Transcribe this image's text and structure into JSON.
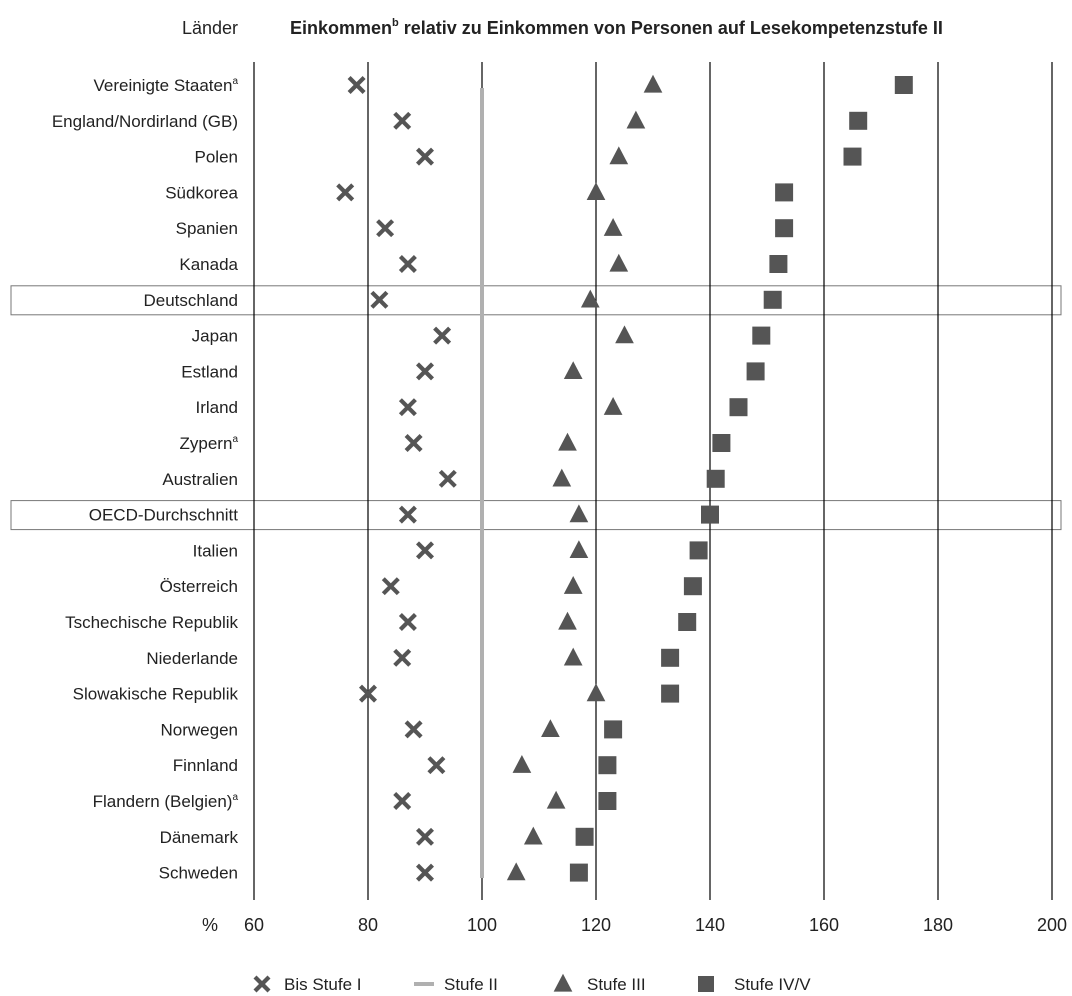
{
  "header": {
    "country_col_label": "Länder",
    "title": "Einkommen",
    "title_sup": "b",
    "title_rest": " relativ zu Einkommen von Personen auf Lesekompetenzstufe II"
  },
  "colors": {
    "marker": "#555555",
    "reference_line": "#b0b0b0",
    "grid": "#000000",
    "highlight_border": "#777777"
  },
  "chart_data": {
    "type": "scatter",
    "x_unit_label": "%",
    "xlim": [
      60,
      200
    ],
    "xticks": [
      "60",
      "80",
      "100",
      "120",
      "140",
      "160",
      "180",
      "200"
    ],
    "grid": true,
    "reference_value": 100,
    "legend_position": "bottom",
    "series": [
      {
        "name": "Bis Stufe I",
        "marker": "x-icon"
      },
      {
        "name": "Stufe II",
        "marker": "line-icon"
      },
      {
        "name": "Stufe III",
        "marker": "triangle-icon"
      },
      {
        "name": "Stufe IV/V",
        "marker": "square-icon"
      }
    ],
    "rows": [
      {
        "country": "Vereinigte Staaten",
        "sup": "a",
        "highlight": false,
        "stufe1": 78,
        "stufe3": 130,
        "stufe45": 174
      },
      {
        "country": "England/Nordirland (GB)",
        "sup": "",
        "highlight": false,
        "stufe1": 86,
        "stufe3": 127,
        "stufe45": 166
      },
      {
        "country": "Polen",
        "sup": "",
        "highlight": false,
        "stufe1": 90,
        "stufe3": 124,
        "stufe45": 165
      },
      {
        "country": "Südkorea",
        "sup": "",
        "highlight": false,
        "stufe1": 76,
        "stufe3": 120,
        "stufe45": 153
      },
      {
        "country": "Spanien",
        "sup": "",
        "highlight": false,
        "stufe1": 83,
        "stufe3": 123,
        "stufe45": 153
      },
      {
        "country": "Kanada",
        "sup": "",
        "highlight": false,
        "stufe1": 87,
        "stufe3": 124,
        "stufe45": 152
      },
      {
        "country": "Deutschland",
        "sup": "",
        "highlight": true,
        "stufe1": 82,
        "stufe3": 119,
        "stufe45": 151
      },
      {
        "country": "Japan",
        "sup": "",
        "highlight": false,
        "stufe1": 93,
        "stufe3": 125,
        "stufe45": 149
      },
      {
        "country": "Estland",
        "sup": "",
        "highlight": false,
        "stufe1": 90,
        "stufe3": 116,
        "stufe45": 148
      },
      {
        "country": "Irland",
        "sup": "",
        "highlight": false,
        "stufe1": 87,
        "stufe3": 123,
        "stufe45": 145
      },
      {
        "country": "Zypern",
        "sup": "a",
        "highlight": false,
        "stufe1": 88,
        "stufe3": 115,
        "stufe45": 142
      },
      {
        "country": "Australien",
        "sup": "",
        "highlight": false,
        "stufe1": 94,
        "stufe3": 114,
        "stufe45": 141
      },
      {
        "country": "OECD-Durchschnitt",
        "sup": "",
        "highlight": true,
        "stufe1": 87,
        "stufe3": 117,
        "stufe45": 140
      },
      {
        "country": "Italien",
        "sup": "",
        "highlight": false,
        "stufe1": 90,
        "stufe3": 117,
        "stufe45": 138
      },
      {
        "country": "Österreich",
        "sup": "",
        "highlight": false,
        "stufe1": 84,
        "stufe3": 116,
        "stufe45": 137
      },
      {
        "country": "Tschechische Republik",
        "sup": "",
        "highlight": false,
        "stufe1": 87,
        "stufe3": 115,
        "stufe45": 136
      },
      {
        "country": "Niederlande",
        "sup": "",
        "highlight": false,
        "stufe1": 86,
        "stufe3": 116,
        "stufe45": 133
      },
      {
        "country": "Slowakische Republik",
        "sup": "",
        "highlight": false,
        "stufe1": 80,
        "stufe3": 120,
        "stufe45": 133
      },
      {
        "country": "Norwegen",
        "sup": "",
        "highlight": false,
        "stufe1": 88,
        "stufe3": 112,
        "stufe45": 123
      },
      {
        "country": "Finnland",
        "sup": "",
        "highlight": false,
        "stufe1": 92,
        "stufe3": 107,
        "stufe45": 122
      },
      {
        "country": "Flandern (Belgien)",
        "sup": "a",
        "highlight": false,
        "stufe1": 86,
        "stufe3": 113,
        "stufe45": 122
      },
      {
        "country": "Dänemark",
        "sup": "",
        "highlight": false,
        "stufe1": 90,
        "stufe3": 109,
        "stufe45": 118
      },
      {
        "country": "Schweden",
        "sup": "",
        "highlight": false,
        "stufe1": 90,
        "stufe3": 106,
        "stufe45": 117
      }
    ]
  }
}
